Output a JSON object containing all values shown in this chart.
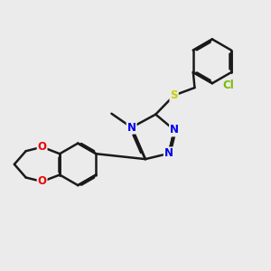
{
  "background_color": "#ebebeb",
  "bond_color": "#1a1a1a",
  "bond_lw": 1.8,
  "atom_colors": {
    "N": "#0000ee",
    "O": "#ee0000",
    "S": "#cccc00",
    "Cl": "#77bb00",
    "C": "#1a1a1a"
  },
  "figsize": [
    3.0,
    3.0
  ],
  "dpi": 100
}
